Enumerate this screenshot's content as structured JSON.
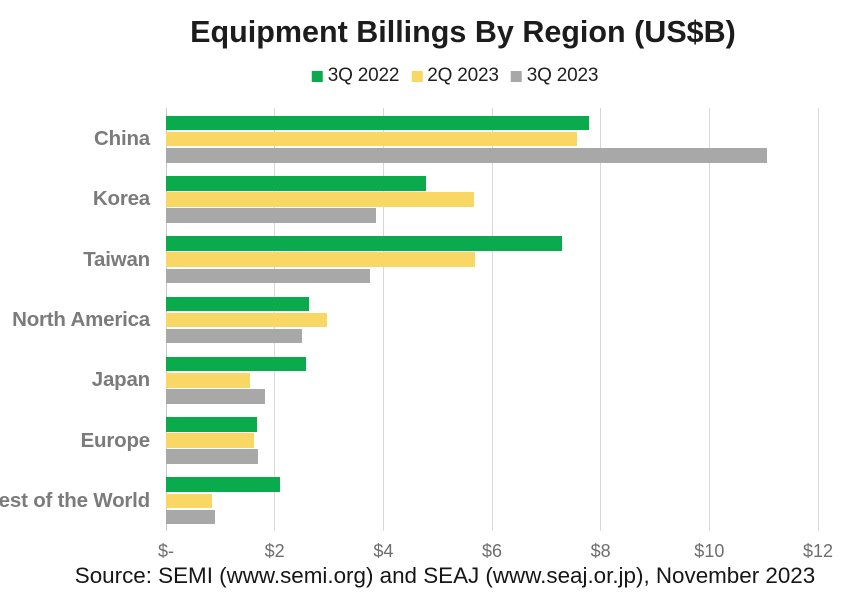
{
  "chart_data": {
    "type": "bar",
    "orientation": "horizontal",
    "title": "Equipment Billings By Region (US$B)",
    "categories": [
      "China",
      "Korea",
      "Taiwan",
      "North America",
      "Japan",
      "Europe",
      "Rest of the World"
    ],
    "series": [
      {
        "name": "3Q 2022",
        "color": "#0aab4d",
        "values": [
          7.78,
          4.79,
          7.29,
          2.63,
          2.58,
          1.68,
          2.1
        ]
      },
      {
        "name": "2Q 2023",
        "color": "#f8d765",
        "values": [
          7.56,
          5.66,
          5.68,
          2.97,
          1.55,
          1.62,
          0.84
        ]
      },
      {
        "name": "3Q 2023",
        "color": "#a8a8a8",
        "values": [
          11.06,
          3.86,
          3.75,
          2.51,
          1.82,
          1.7,
          0.91
        ]
      }
    ],
    "x_axis": {
      "tick_labels": [
        "$-",
        "$2",
        "$4",
        "$6",
        "$8",
        "$10",
        "$12"
      ],
      "tick_values": [
        0,
        2,
        4,
        6,
        8,
        10,
        12
      ],
      "min": 0,
      "max": 12
    },
    "grid": "vertical",
    "legend_position": "top",
    "source_note": "Source: SEMI (www.semi.org) and SEAJ (www.seaj.or.jp), November 2023"
  }
}
